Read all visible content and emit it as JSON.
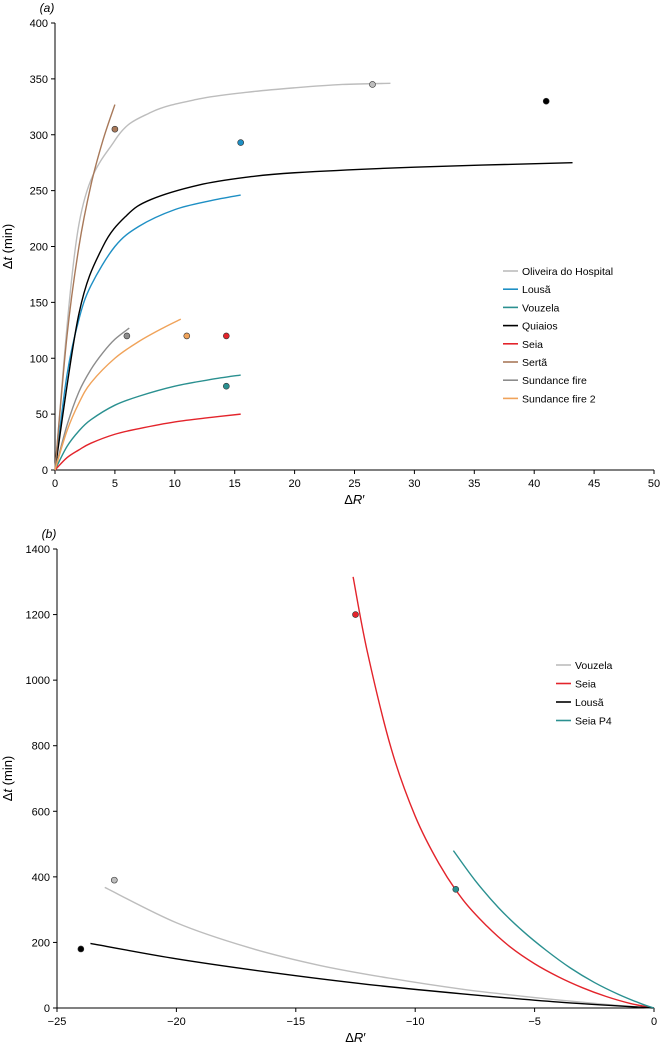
{
  "chart_data": [
    {
      "type": "line",
      "panel_label": "(a)",
      "xlabel": "ΔR′",
      "ylabel": "Δt (min)",
      "xlim": [
        0,
        50
      ],
      "ylim": [
        0,
        400
      ],
      "xticks": [
        0,
        5,
        10,
        15,
        20,
        25,
        30,
        35,
        40,
        45,
        50
      ],
      "yticks": [
        0,
        50,
        100,
        150,
        200,
        250,
        300,
        350,
        400
      ],
      "legend_position": "right-center",
      "series": [
        {
          "name": "Oliveira do Hospital",
          "color": "#bdbdbd",
          "x": [
            0,
            2,
            5,
            8,
            12,
            16,
            20,
            24,
            28
          ],
          "y": [
            0,
            220,
            295,
            320,
            332,
            338,
            342,
            345,
            346
          ],
          "point": [
            26.5,
            345
          ]
        },
        {
          "name": "Lousã",
          "color": "#1e8fc4",
          "x": [
            0,
            1,
            2,
            3,
            5,
            7,
            10,
            13,
            15.5
          ],
          "y": [
            0,
            85,
            135,
            165,
            200,
            218,
            233,
            241,
            246
          ],
          "point": [
            15.5,
            293
          ]
        },
        {
          "name": "Vouzela",
          "color": "#2a9090",
          "x": [
            0,
            1,
            2,
            3,
            5,
            7,
            10,
            13,
            15.5
          ],
          "y": [
            0,
            21,
            35,
            45,
            58,
            66,
            75,
            81,
            85
          ],
          "point": [
            14.3,
            75
          ]
        },
        {
          "name": "Quiaios",
          "color": "#000000",
          "x": [
            0,
            2,
            4,
            6,
            8,
            12,
            16,
            20,
            30,
            43.2
          ],
          "y": [
            0,
            140,
            200,
            228,
            242,
            255,
            262,
            266,
            271,
            275
          ],
          "point": [
            41,
            330
          ]
        },
        {
          "name": "Seia",
          "color": "#e3242b",
          "x": [
            0,
            1,
            2,
            3,
            5,
            7,
            10,
            13,
            15.5
          ],
          "y": [
            0,
            11,
            18,
            24,
            32,
            37,
            43,
            47,
            50
          ],
          "point": [
            14.3,
            120
          ]
        },
        {
          "name": "Sertã",
          "color": "#a8795a",
          "x": [
            0,
            1,
            2,
            3,
            4,
            5
          ],
          "y": [
            0,
            120,
            200,
            255,
            295,
            327
          ],
          "point": [
            5,
            305
          ]
        },
        {
          "name": "Sundance fire",
          "color": "#8c8c8c",
          "x": [
            0,
            1,
            2,
            3,
            4,
            5,
            6.2
          ],
          "y": [
            0,
            40,
            70,
            90,
            105,
            117,
            127
          ],
          "point": [
            6,
            120
          ]
        },
        {
          "name": "Sundance fire 2",
          "color": "#f0a35a",
          "x": [
            0,
            1,
            2,
            3,
            5,
            7,
            9,
            10.5
          ],
          "y": [
            0,
            35,
            60,
            78,
            100,
            115,
            127,
            135
          ],
          "point": [
            11,
            120
          ]
        }
      ]
    },
    {
      "type": "line",
      "panel_label": "(b)",
      "xlabel": "ΔR′",
      "ylabel": "Δt (min)",
      "xlim": [
        -25,
        0
      ],
      "ylim": [
        0,
        1400
      ],
      "xticks": [
        -25,
        -20,
        -15,
        -10,
        -5,
        0
      ],
      "xtick_labels": [
        "−25",
        "−20",
        "−15",
        "−10",
        "−5",
        "0"
      ],
      "yticks": [
        0,
        200,
        400,
        600,
        800,
        1000,
        1200,
        1400
      ],
      "legend_position": "right-upper",
      "series": [
        {
          "name": "Vouzela",
          "color": "#bdbdbd",
          "x": [
            -23,
            -20,
            -17,
            -14,
            -11,
            -8,
            -5,
            -2,
            0
          ],
          "y": [
            368,
            260,
            185,
            130,
            90,
            57,
            32,
            11,
            0
          ],
          "point": [
            -22.6,
            390
          ]
        },
        {
          "name": "Seia",
          "color": "#e3242b",
          "x": [
            -12.6,
            -12,
            -11,
            -10,
            -9,
            -8,
            -7,
            -6,
            -5,
            -4,
            -3,
            -2,
            -1,
            0
          ],
          "y": [
            1315,
            1085,
            790,
            585,
            440,
            330,
            250,
            185,
            135,
            95,
            62,
            35,
            14,
            0
          ],
          "point": [
            -12.5,
            1200
          ]
        },
        {
          "name": "Lousã",
          "color": "#000000",
          "x": [
            -23.6,
            -20,
            -16,
            -12,
            -8,
            -4,
            0
          ],
          "y": [
            197,
            150,
            108,
            72,
            43,
            18,
            0
          ],
          "point": [
            -24,
            180
          ]
        },
        {
          "name": "Seia P4",
          "color": "#2a9090",
          "x": [
            -8.4,
            -7.5,
            -6.5,
            -5.5,
            -4.5,
            -3.5,
            -2.5,
            -1.5,
            -0.5,
            0
          ],
          "y": [
            480,
            390,
            305,
            235,
            175,
            122,
            78,
            42,
            12,
            0
          ],
          "point": [
            -8.3,
            362
          ]
        }
      ]
    }
  ]
}
